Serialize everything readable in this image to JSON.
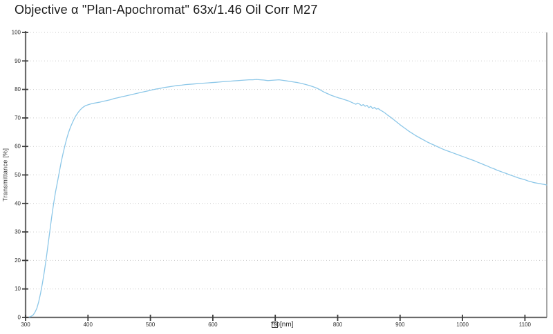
{
  "title": "Objective α \"Plan-Apochromat\" 63x/1.46 Oil Corr M27",
  "chart_data": {
    "type": "line",
    "title": "Objective α \"Plan-Apochromat\" 63x/1.46 Oil Corr M27",
    "xlabel_symbol": "λ",
    "xlabel_symbol_note": "rendered as missing-glyph box in source UI",
    "xlabel_unit": "[nm]",
    "ylabel": "Transmittance [%]",
    "xlim": [
      300,
      1135
    ],
    "ylim": [
      0,
      100
    ],
    "x_ticks": [
      300,
      400,
      500,
      600,
      700,
      800,
      900,
      1000,
      1100
    ],
    "y_ticks": [
      0,
      10,
      20,
      30,
      40,
      50,
      60,
      70,
      80,
      90,
      100
    ],
    "grid": "horizontal-dotted",
    "legend": "none",
    "line_color": "#8cc7e8",
    "axis_color": "#6b6b6b",
    "tick_color": "#3c3c3c",
    "grid_color": "#c9c9c9",
    "series": [
      {
        "name": "transmittance",
        "points": [
          [
            306,
            0.2
          ],
          [
            309,
            0.4
          ],
          [
            312,
            0.8
          ],
          [
            315,
            1.8
          ],
          [
            318,
            3.2
          ],
          [
            321,
            5.5
          ],
          [
            324,
            8.5
          ],
          [
            327,
            12
          ],
          [
            330,
            16
          ],
          [
            333,
            20.5
          ],
          [
            336,
            25.5
          ],
          [
            339,
            30.5
          ],
          [
            342,
            35.5
          ],
          [
            345,
            40
          ],
          [
            348,
            44
          ],
          [
            351,
            47.5
          ],
          [
            354,
            51
          ],
          [
            357,
            54.5
          ],
          [
            360,
            57.5
          ],
          [
            363,
            60.3
          ],
          [
            366,
            62.8
          ],
          [
            369,
            65
          ],
          [
            372,
            66.8
          ],
          [
            375,
            68.3
          ],
          [
            378,
            69.7
          ],
          [
            381,
            70.9
          ],
          [
            384,
            71.9
          ],
          [
            387,
            72.7
          ],
          [
            390,
            73.4
          ],
          [
            393,
            73.9
          ],
          [
            396,
            74.3
          ],
          [
            400,
            74.6
          ],
          [
            404,
            74.9
          ],
          [
            408,
            75.1
          ],
          [
            413,
            75.3
          ],
          [
            418,
            75.5
          ],
          [
            424,
            75.8
          ],
          [
            430,
            76.1
          ],
          [
            436,
            76.4
          ],
          [
            442,
            76.8
          ],
          [
            448,
            77.1
          ],
          [
            454,
            77.4
          ],
          [
            460,
            77.7
          ],
          [
            466,
            78
          ],
          [
            472,
            78.3
          ],
          [
            478,
            78.6
          ],
          [
            484,
            78.9
          ],
          [
            490,
            79.2
          ],
          [
            496,
            79.5
          ],
          [
            502,
            79.8
          ],
          [
            508,
            80.1
          ],
          [
            514,
            80.3
          ],
          [
            520,
            80.6
          ],
          [
            526,
            80.8
          ],
          [
            532,
            81
          ],
          [
            538,
            81.2
          ],
          [
            544,
            81.4
          ],
          [
            550,
            81.5
          ],
          [
            556,
            81.7
          ],
          [
            562,
            81.8
          ],
          [
            568,
            81.9
          ],
          [
            574,
            82
          ],
          [
            580,
            82.1
          ],
          [
            586,
            82.2
          ],
          [
            592,
            82.3
          ],
          [
            598,
            82.4
          ],
          [
            604,
            82.5
          ],
          [
            610,
            82.6
          ],
          [
            616,
            82.7
          ],
          [
            622,
            82.8
          ],
          [
            628,
            82.9
          ],
          [
            634,
            83
          ],
          [
            640,
            83.1
          ],
          [
            646,
            83.2
          ],
          [
            652,
            83.3
          ],
          [
            658,
            83.4
          ],
          [
            664,
            83.4
          ],
          [
            670,
            83.5
          ],
          [
            676,
            83.4
          ],
          [
            682,
            83.3
          ],
          [
            688,
            83.1
          ],
          [
            694,
            83.2
          ],
          [
            700,
            83.3
          ],
          [
            706,
            83.4
          ],
          [
            712,
            83.2
          ],
          [
            718,
            83
          ],
          [
            724,
            82.8
          ],
          [
            730,
            82.6
          ],
          [
            736,
            82.4
          ],
          [
            742,
            82.1
          ],
          [
            748,
            81.8
          ],
          [
            754,
            81.4
          ],
          [
            760,
            81
          ],
          [
            766,
            80.5
          ],
          [
            770,
            80.1
          ],
          [
            774,
            79.6
          ],
          [
            778,
            79.1
          ],
          [
            782,
            78.7
          ],
          [
            786,
            78.3
          ],
          [
            790,
            77.9
          ],
          [
            794,
            77.6
          ],
          [
            798,
            77.3
          ],
          [
            802,
            77
          ],
          [
            806,
            76.8
          ],
          [
            810,
            76.5
          ],
          [
            814,
            76.2
          ],
          [
            818,
            75.9
          ],
          [
            822,
            75.5
          ],
          [
            826,
            75.1
          ],
          [
            829,
            74.8
          ],
          [
            832,
            75.2
          ],
          [
            835,
            74.9
          ],
          [
            838,
            74.3
          ],
          [
            841,
            74.7
          ],
          [
            844,
            74.1
          ],
          [
            847,
            74.4
          ],
          [
            850,
            73.6
          ],
          [
            853,
            74.1
          ],
          [
            856,
            73.3
          ],
          [
            859,
            73.7
          ],
          [
            862,
            73.1
          ],
          [
            865,
            73.3
          ],
          [
            868,
            72.8
          ],
          [
            872,
            72.3
          ],
          [
            876,
            71.7
          ],
          [
            880,
            71
          ],
          [
            884,
            70.4
          ],
          [
            888,
            69.7
          ],
          [
            892,
            69
          ],
          [
            896,
            68.3
          ],
          [
            900,
            67.6
          ],
          [
            905,
            66.8
          ],
          [
            910,
            66
          ],
          [
            915,
            65.2
          ],
          [
            920,
            64.5
          ],
          [
            925,
            63.8
          ],
          [
            930,
            63.2
          ],
          [
            935,
            62.6
          ],
          [
            940,
            62
          ],
          [
            945,
            61.4
          ],
          [
            950,
            60.9
          ],
          [
            955,
            60.4
          ],
          [
            960,
            59.9
          ],
          [
            965,
            59.4
          ],
          [
            970,
            58.9
          ],
          [
            975,
            58.5
          ],
          [
            980,
            58.1
          ],
          [
            985,
            57.7
          ],
          [
            990,
            57.3
          ],
          [
            995,
            56.9
          ],
          [
            1000,
            56.5
          ],
          [
            1005,
            56.1
          ],
          [
            1010,
            55.7
          ],
          [
            1015,
            55.3
          ],
          [
            1020,
            54.9
          ],
          [
            1025,
            54.4
          ],
          [
            1030,
            54
          ],
          [
            1035,
            53.5
          ],
          [
            1040,
            53.1
          ],
          [
            1045,
            52.6
          ],
          [
            1050,
            52.2
          ],
          [
            1055,
            51.7
          ],
          [
            1060,
            51.3
          ],
          [
            1065,
            50.9
          ],
          [
            1070,
            50.5
          ],
          [
            1075,
            50.1
          ],
          [
            1080,
            49.7
          ],
          [
            1085,
            49.3
          ],
          [
            1090,
            48.9
          ],
          [
            1095,
            48.6
          ],
          [
            1100,
            48.3
          ],
          [
            1105,
            47.9
          ],
          [
            1110,
            47.6
          ],
          [
            1115,
            47.3
          ],
          [
            1120,
            47.1
          ],
          [
            1125,
            46.9
          ],
          [
            1130,
            46.7
          ],
          [
            1135,
            46.5
          ]
        ]
      }
    ]
  }
}
